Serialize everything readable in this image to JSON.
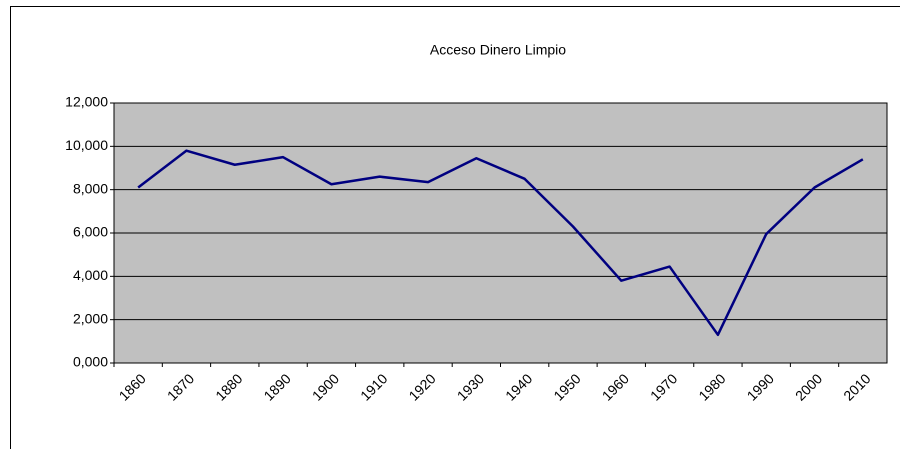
{
  "chart_data": {
    "type": "line",
    "title": "Acceso Dinero Limpio",
    "categories": [
      "1860",
      "1870",
      "1880",
      "1890",
      "1900",
      "1910",
      "1920",
      "1930",
      "1940",
      "1950",
      "1960",
      "1970",
      "1980",
      "1990",
      "2000",
      "2010"
    ],
    "series": [
      {
        "name": "Acceso Dinero Limpio",
        "color": "#000080",
        "values": [
          8100,
          9800,
          9150,
          9500,
          8250,
          8600,
          8350,
          9450,
          8500,
          6300,
          3800,
          4450,
          1300,
          5950,
          8100,
          9400
        ]
      }
    ],
    "ylim": [
      0,
      12000
    ],
    "yticks": [
      {
        "value": 0,
        "label": "0,000"
      },
      {
        "value": 2000,
        "label": "2,000"
      },
      {
        "value": 4000,
        "label": "4,000"
      },
      {
        "value": 6000,
        "label": "6,000"
      },
      {
        "value": 8000,
        "label": "8,000"
      },
      {
        "value": 10000,
        "label": "10,000"
      },
      {
        "value": 12000,
        "label": "12,000"
      }
    ],
    "grid": true,
    "plot_background": "#c0c0c0"
  }
}
